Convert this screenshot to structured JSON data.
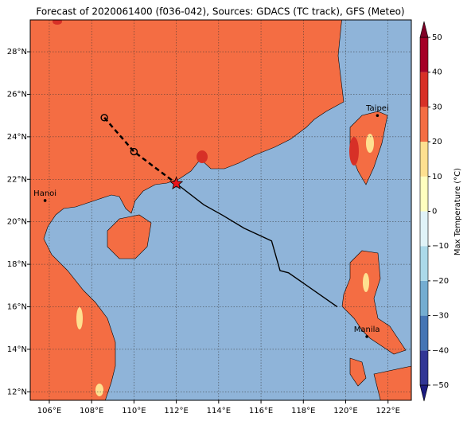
{
  "title": "Forecast of 2020061400 (f036-042), Sources: GDACS (TC track), GFS (Meteo)",
  "map": {
    "xlim": [
      105.1,
      123.1
    ],
    "ylim": [
      11.6,
      29.5
    ],
    "xticks": [
      {
        "value": 106,
        "label": "106°E"
      },
      {
        "value": 108,
        "label": "108°E"
      },
      {
        "value": 110,
        "label": "110°E"
      },
      {
        "value": 112,
        "label": "112°E"
      },
      {
        "value": 114,
        "label": "114°E"
      },
      {
        "value": 116,
        "label": "116°E"
      },
      {
        "value": 118,
        "label": "118°E"
      },
      {
        "value": 120,
        "label": "120°E"
      },
      {
        "value": 122,
        "label": "122°E"
      }
    ],
    "yticks": [
      {
        "value": 12,
        "label": "12°N"
      },
      {
        "value": 14,
        "label": "14°N"
      },
      {
        "value": 16,
        "label": "16°N"
      },
      {
        "value": 18,
        "label": "18°N"
      },
      {
        "value": 20,
        "label": "20°N"
      },
      {
        "value": 22,
        "label": "22°N"
      },
      {
        "value": 24,
        "label": "24°N"
      },
      {
        "value": 26,
        "label": "26°N"
      },
      {
        "value": 28,
        "label": "28°N"
      }
    ],
    "cities": [
      {
        "name": "Hanoi",
        "lon": 105.8,
        "lat": 21.0
      },
      {
        "name": "Taipei",
        "lon": 121.5,
        "lat": 25.0
      },
      {
        "name": "Manila",
        "lon": 121.0,
        "lat": 14.6
      }
    ],
    "forecast_track": {
      "lon": [
        108.6,
        110.0,
        112.0
      ],
      "lat": [
        24.9,
        23.3,
        21.8
      ]
    },
    "past_track": {
      "lon": [
        112.0,
        113.3,
        114.2,
        115.2,
        116.5,
        116.9,
        117.3,
        119.6
      ],
      "lat": [
        21.8,
        20.8,
        20.3,
        19.7,
        19.1,
        17.7,
        17.6,
        16.0
      ]
    }
  },
  "colorbar": {
    "label": "Max Temperature (°C)",
    "ticks": [
      {
        "value": -50,
        "label": "−50"
      },
      {
        "value": -40,
        "label": "−40"
      },
      {
        "value": -30,
        "label": "−30"
      },
      {
        "value": -20,
        "label": "−20"
      },
      {
        "value": -10,
        "label": "−10"
      },
      0,
      10,
      20,
      30,
      40,
      50
    ],
    "colors": [
      "#313695",
      "#4575b4",
      "#74add1",
      "#abd9e9",
      "#e0f3f8",
      "#ffffbf",
      "#fee090",
      "#f46d43",
      "#d73027",
      "#a50026"
    ],
    "under": "#1c1c80",
    "over": "#800026"
  }
}
